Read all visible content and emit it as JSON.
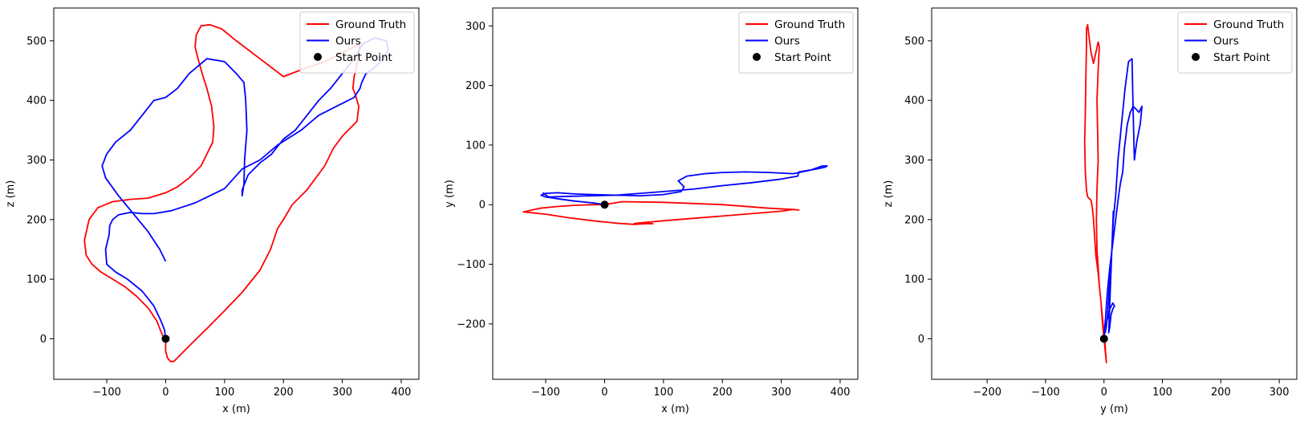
{
  "chart_data": [
    {
      "type": "line",
      "xlabel": "x (m)",
      "ylabel": "z (m)",
      "xlim": [
        -190,
        430
      ],
      "ylim": [
        -68,
        555
      ],
      "xticks": [
        -100,
        0,
        100,
        200,
        300,
        400
      ],
      "yticks": [
        0,
        100,
        200,
        300,
        400,
        500
      ],
      "grid": false,
      "legend": {
        "placement": "top-right",
        "entries": [
          "Ground Truth",
          "Ours",
          "Start Point"
        ]
      },
      "series": [
        {
          "name": "Ground Truth",
          "color": "#ff0000",
          "x": [
            0,
            0,
            3,
            8,
            14,
            20,
            40,
            70,
            100,
            130,
            160,
            178,
            190,
            200,
            215,
            240,
            270,
            285,
            300,
            315,
            325,
            328,
            322,
            318,
            320,
            325,
            328,
            330,
            320,
            300,
            270,
            240,
            200,
            160,
            120,
            95,
            75,
            60,
            52,
            50,
            55,
            62,
            70,
            78,
            82,
            80,
            70,
            60,
            40,
            20,
            0,
            -30,
            -60,
            -90,
            -115,
            -130,
            -138,
            -135,
            -125,
            -110,
            -90,
            -70,
            -50,
            -30,
            -15,
            -8,
            -4,
            -1,
            0
          ],
          "y": [
            0,
            -20,
            -32,
            -38,
            -38,
            -32,
            -12,
            17,
            47,
            78,
            115,
            150,
            185,
            200,
            225,
            250,
            290,
            320,
            340,
            355,
            365,
            390,
            410,
            420,
            440,
            460,
            480,
            495,
            490,
            480,
            465,
            455,
            440,
            470,
            500,
            520,
            527,
            525,
            510,
            490,
            470,
            445,
            420,
            390,
            355,
            330,
            310,
            290,
            270,
            255,
            245,
            236,
            234,
            230,
            220,
            200,
            165,
            140,
            125,
            112,
            100,
            88,
            72,
            52,
            30,
            12,
            3,
            0.5,
            0
          ]
        },
        {
          "name": "Ours",
          "color": "#0000ff",
          "x": [
            0,
            -2,
            -8,
            -20,
            -40,
            -65,
            -85,
            -100,
            -102,
            -96,
            -95,
            -90,
            -80,
            -60,
            -40,
            -20,
            10,
            50,
            100,
            130,
            160,
            190,
            230,
            260,
            290,
            320,
            330,
            333,
            340,
            355,
            370,
            378,
            375,
            355,
            335,
            320,
            300,
            280,
            260,
            240,
            220,
            200,
            180,
            160,
            140,
            130,
            130,
            133,
            134,
            138,
            136,
            133,
            120,
            100,
            70,
            40,
            20,
            0,
            -20,
            -40,
            -60,
            -85,
            -100,
            -108,
            -102,
            -80,
            -55,
            -30,
            -10,
            0
          ],
          "y": [
            0,
            15,
            30,
            55,
            80,
            100,
            112,
            125,
            150,
            175,
            190,
            200,
            208,
            212,
            210,
            210,
            215,
            228,
            252,
            285,
            300,
            325,
            350,
            375,
            390,
            405,
            420,
            430,
            445,
            455,
            470,
            485,
            500,
            505,
            495,
            470,
            445,
            420,
            400,
            375,
            350,
            335,
            310,
            295,
            275,
            250,
            240,
            260,
            300,
            350,
            400,
            430,
            445,
            465,
            470,
            445,
            420,
            405,
            400,
            375,
            350,
            330,
            310,
            290,
            270,
            240,
            210,
            180,
            150,
            130
          ]
        },
        {
          "name": "Start Point",
          "color": "#000000",
          "type": "scatter",
          "x": [
            0
          ],
          "y": [
            0
          ]
        }
      ]
    },
    {
      "type": "line",
      "xlabel": "x (m)",
      "ylabel": "y (m)",
      "xlim": [
        -190,
        430
      ],
      "ylim": [
        -293,
        330
      ],
      "xticks": [
        -100,
        0,
        100,
        200,
        300,
        400
      ],
      "yticks": [
        -200,
        -100,
        0,
        100,
        200,
        300
      ],
      "grid": false,
      "legend": {
        "placement": "top-right",
        "entries": [
          "Ground Truth",
          "Ours",
          "Start Point"
        ]
      },
      "series": [
        {
          "name": "Ground Truth",
          "color": "#ff0000",
          "x": [
            0,
            30,
            100,
            200,
            280,
            318,
            330,
            320,
            300,
            250,
            200,
            150,
            100,
            55,
            50,
            70,
            82,
            70,
            50,
            20,
            -20,
            -60,
            -100,
            -138,
            -110,
            -80,
            -50,
            -20,
            0
          ],
          "y": [
            0,
            5,
            4,
            0,
            -6,
            -8,
            -9,
            -8,
            -11,
            -15,
            -19,
            -23,
            -27,
            -31,
            -32,
            -31,
            -32,
            -32,
            -33,
            -31,
            -27,
            -22,
            -16,
            -12,
            -6,
            -3,
            -1,
            0,
            0
          ],
          "color_note": "red"
        },
        {
          "name": "Ours",
          "color": "#0000ff",
          "x": [
            0,
            -20,
            -50,
            -80,
            -100,
            -108,
            -100,
            -80,
            -50,
            -20,
            20,
            60,
            100,
            130,
            135,
            125,
            140,
            170,
            200,
            240,
            280,
            320,
            350,
            370,
            378,
            375,
            360,
            330,
            328,
            300,
            250,
            200,
            150,
            100,
            60,
            20,
            -20,
            -60,
            -95,
            -105
          ],
          "y": [
            0,
            3,
            6,
            10,
            13,
            16,
            19,
            20,
            18,
            17,
            16,
            15,
            17,
            22,
            30,
            40,
            48,
            52,
            54,
            55,
            54,
            52,
            58,
            65,
            65,
            63,
            60,
            55,
            48,
            43,
            37,
            32,
            26,
            22,
            19,
            16,
            15,
            14,
            13,
            20
          ]
        },
        {
          "name": "Start Point",
          "color": "#000000",
          "type": "scatter",
          "x": [
            0
          ],
          "y": [
            0
          ]
        }
      ]
    },
    {
      "type": "line",
      "xlabel": "y (m)",
      "ylabel": "z (m)",
      "xlim": [
        -295,
        330
      ],
      "ylim": [
        -68,
        555
      ],
      "xticks": [
        -200,
        -100,
        0,
        100,
        200,
        300
      ],
      "yticks": [
        0,
        100,
        200,
        300,
        400,
        500
      ],
      "grid": false,
      "legend": {
        "placement": "top-right",
        "entries": [
          "Ground Truth",
          "Ours",
          "Start Point"
        ]
      },
      "series": [
        {
          "name": "Ground Truth",
          "color": "#ff0000",
          "x": [
            0,
            4,
            3,
            1,
            -2,
            -5,
            -8,
            -10,
            -12,
            -13,
            -12,
            -10,
            -11,
            -12,
            -10,
            -8,
            -10,
            -14,
            -18,
            -22,
            -26,
            -28,
            -30,
            -30,
            -31,
            -32,
            -33,
            -32,
            -30,
            -28,
            -25,
            -22,
            -20,
            -18,
            -16,
            -14,
            -10,
            -8,
            -5,
            -3,
            -1,
            0
          ],
          "y": [
            0,
            -40,
            -25,
            0,
            30,
            60,
            90,
            120,
            150,
            200,
            250,
            300,
            350,
            400,
            450,
            490,
            498,
            480,
            462,
            480,
            510,
            527,
            520,
            490,
            440,
            380,
            330,
            280,
            250,
            238,
            235,
            232,
            220,
            200,
            170,
            140,
            110,
            90,
            60,
            30,
            10,
            0
          ]
        },
        {
          "name": "Ours",
          "color": "#0000ff",
          "x": [
            0,
            3,
            6,
            10,
            15,
            20,
            25,
            28,
            32,
            35,
            40,
            45,
            50,
            55,
            60,
            65,
            62,
            56,
            52,
            50,
            48,
            42,
            36,
            30,
            24,
            20,
            16,
            14,
            12,
            10,
            8,
            6,
            4,
            2,
            5,
            10,
            15,
            18,
            15,
            12,
            10,
            8,
            16
          ],
          "y": [
            0,
            40,
            80,
            120,
            160,
            200,
            240,
            260,
            280,
            320,
            360,
            380,
            390,
            385,
            380,
            390,
            360,
            330,
            300,
            375,
            470,
            465,
            420,
            360,
            300,
            240,
            200,
            160,
            130,
            100,
            70,
            40,
            20,
            10,
            30,
            50,
            60,
            55,
            50,
            40,
            20,
            10,
            215
          ]
        },
        {
          "name": "Start Point",
          "color": "#000000",
          "type": "scatter",
          "x": [
            0
          ],
          "y": [
            0
          ]
        }
      ]
    }
  ]
}
